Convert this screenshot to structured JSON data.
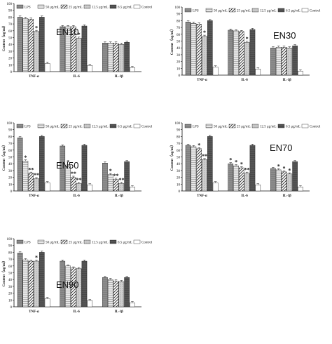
{
  "figure": {
    "legend_labels": [
      "LPS",
      "50 μg/mL",
      "25 μg/mL",
      "12.5 μg/mL",
      "6.5 μg/mL",
      "Control"
    ],
    "significance_mark": "*",
    "double_significance_mark": "**",
    "ylabel": "Content（ng/ml）",
    "categories": [
      "TNF-α",
      "IL-6",
      "IL-1β"
    ],
    "yticks": [
      "0",
      "10",
      "20",
      "30",
      "40",
      "50",
      "60",
      "70",
      "80",
      "90",
      "100"
    ]
  },
  "chart_data": [
    {
      "type": "bar",
      "title": "EN10",
      "categories": [
        "TNF-α",
        "IL-6",
        "IL-1β"
      ],
      "ylabel": "Content（ng/ml）",
      "ylim": [
        0,
        100
      ],
      "series": [
        {
          "name": "LPS",
          "values": [
            80,
            66,
            42
          ]
        },
        {
          "name": "50 μg/mL",
          "values": [
            78,
            66,
            42
          ]
        },
        {
          "name": "25 μg/mL",
          "values": [
            77,
            66,
            42
          ]
        },
        {
          "name": "12.5 μg/mL",
          "values": [
            59,
            49,
            40
          ]
        },
        {
          "name": "6.5 μg/mL",
          "values": [
            80,
            67,
            43
          ]
        },
        {
          "name": "Control",
          "values": [
            12,
            9,
            6
          ]
        }
      ],
      "marks": [
        [
          0,
          3,
          "*"
        ],
        [
          1,
          3,
          "*"
        ]
      ]
    },
    {
      "type": "bar",
      "title": "EN30",
      "categories": [
        "TNF-α",
        "IL-6",
        "IL-1β"
      ],
      "ylabel": "Content（ng/ml）",
      "ylim": [
        0,
        100
      ],
      "series": [
        {
          "name": "LPS",
          "values": [
            78,
            66,
            40
          ]
        },
        {
          "name": "50 μg/mL",
          "values": [
            76,
            65,
            41
          ]
        },
        {
          "name": "25 μg/mL",
          "values": [
            75,
            64,
            41
          ]
        },
        {
          "name": "12.5 μg/mL",
          "values": [
            57,
            48,
            40
          ]
        },
        {
          "name": "6.5 μg/mL",
          "values": [
            80,
            67,
            43
          ]
        },
        {
          "name": "Control",
          "values": [
            12,
            9,
            6
          ]
        }
      ],
      "marks": [
        [
          0,
          3,
          "*"
        ],
        [
          1,
          3,
          "*"
        ]
      ]
    },
    {
      "type": "bar",
      "title": "EN50",
      "categories": [
        "TNF-α",
        "IL-6",
        "IL-1β"
      ],
      "ylabel": "Content（ng/ml）",
      "ylim": [
        0,
        100
      ],
      "series": [
        {
          "name": "LPS",
          "values": [
            78,
            66,
            41
          ]
        },
        {
          "name": "50 μg/mL",
          "values": [
            44,
            37,
            24
          ]
        },
        {
          "name": "25 μg/mL",
          "values": [
            26,
            20,
            17
          ]
        },
        {
          "name": "12.5 μg/mL",
          "values": [
            18,
            11,
            11
          ]
        },
        {
          "name": "6.5 μg/mL",
          "values": [
            80,
            67,
            43
          ]
        },
        {
          "name": "Control",
          "values": [
            12,
            9,
            6
          ]
        }
      ],
      "marks": [
        [
          0,
          1,
          "*"
        ],
        [
          0,
          2,
          "**"
        ],
        [
          0,
          3,
          "**"
        ],
        [
          1,
          1,
          "*"
        ],
        [
          1,
          2,
          "**"
        ],
        [
          1,
          3,
          "**"
        ],
        [
          2,
          1,
          "*"
        ],
        [
          2,
          2,
          "**"
        ],
        [
          2,
          3,
          "**"
        ]
      ]
    },
    {
      "type": "bar",
      "title": "EN70",
      "categories": [
        "TNF-α",
        "IL-6",
        "IL-1β"
      ],
      "ylabel": "Content（ng/ml）",
      "ylim": [
        0,
        100
      ],
      "series": [
        {
          "name": "LPS",
          "values": [
            67,
            40,
            33
          ]
        },
        {
          "name": "50 μg/mL",
          "values": [
            65,
            37,
            31
          ]
        },
        {
          "name": "25 μg/mL",
          "values": [
            62,
            34,
            28
          ]
        },
        {
          "name": "12.5 μg/mL",
          "values": [
            46,
            26,
            25
          ]
        },
        {
          "name": "6.5 μg/mL",
          "values": [
            80,
            67,
            43
          ]
        },
        {
          "name": "Control",
          "values": [
            12,
            9,
            6
          ]
        }
      ],
      "marks": [
        [
          0,
          2,
          "*"
        ],
        [
          0,
          3,
          "**"
        ],
        [
          1,
          0,
          "*"
        ],
        [
          1,
          1,
          "*"
        ],
        [
          1,
          2,
          "*"
        ],
        [
          1,
          3,
          "**"
        ],
        [
          2,
          1,
          "*"
        ],
        [
          2,
          2,
          "*"
        ],
        [
          2,
          3,
          "*"
        ]
      ]
    },
    {
      "type": "bar",
      "title": "EN90",
      "categories": [
        "TNF-α",
        "IL-6",
        "IL-1β"
      ],
      "ylabel": "Content（ng/ml）",
      "ylim": [
        0,
        100
      ],
      "series": [
        {
          "name": "LPS",
          "values": [
            79,
            67,
            43
          ]
        },
        {
          "name": "50 μg/mL",
          "values": [
            69,
            60,
            40
          ]
        },
        {
          "name": "25 μg/mL",
          "values": [
            67,
            57,
            38
          ]
        },
        {
          "name": "12.5 μg/mL",
          "values": [
            67,
            56,
            37
          ]
        },
        {
          "name": "6.5 μg/mL",
          "values": [
            80,
            67,
            43
          ]
        },
        {
          "name": "Control",
          "values": [
            12,
            9,
            6
          ]
        }
      ],
      "marks": [
        [
          0,
          3,
          "*"
        ]
      ]
    }
  ]
}
